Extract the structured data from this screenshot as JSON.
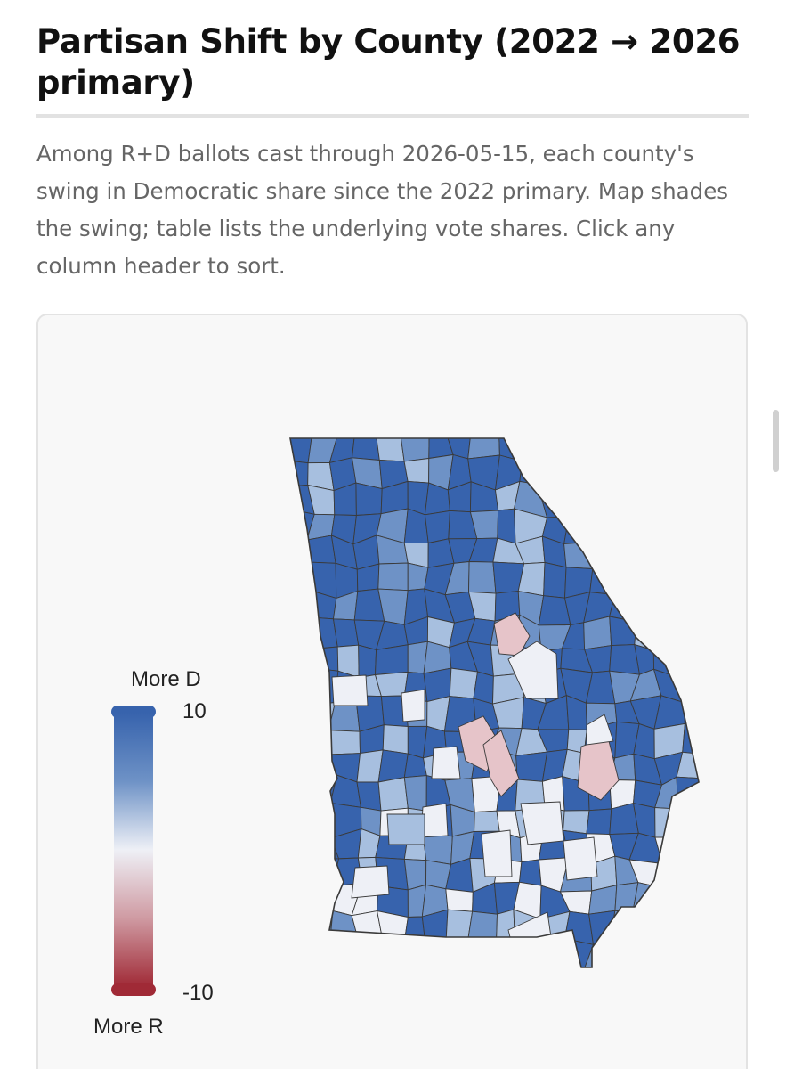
{
  "header": {
    "title": "Partisan Shift by County (2022 → 2026 primary)",
    "description": "Among R+D ballots cast through 2026-05-15, each county's swing in Democratic share since the 2022 primary. Map shades the swing; table lists the underlying vote shares. Click any column header to sort."
  },
  "legend": {
    "top_label": "More D",
    "bottom_label": "More R",
    "max_label": "10",
    "min_label": "-10",
    "max_value": 10,
    "min_value": -10
  },
  "colors": {
    "dem_strong": "#3763ad",
    "dem_medium": "#6e92c6",
    "dem_light": "#a7bfdf",
    "neutral": "#eef0f6",
    "rep_light": "#e6c4c9",
    "rep_strong": "#a02a36",
    "county_border": "#3a3a3a",
    "page_background": "#ffffff",
    "card_background": "#f8f8f8"
  },
  "map": {
    "region": "Georgia",
    "swing_summary": "Most counties shaded blue (Democratic swing); a few light-red counties in the central and southeastern part of the state"
  }
}
